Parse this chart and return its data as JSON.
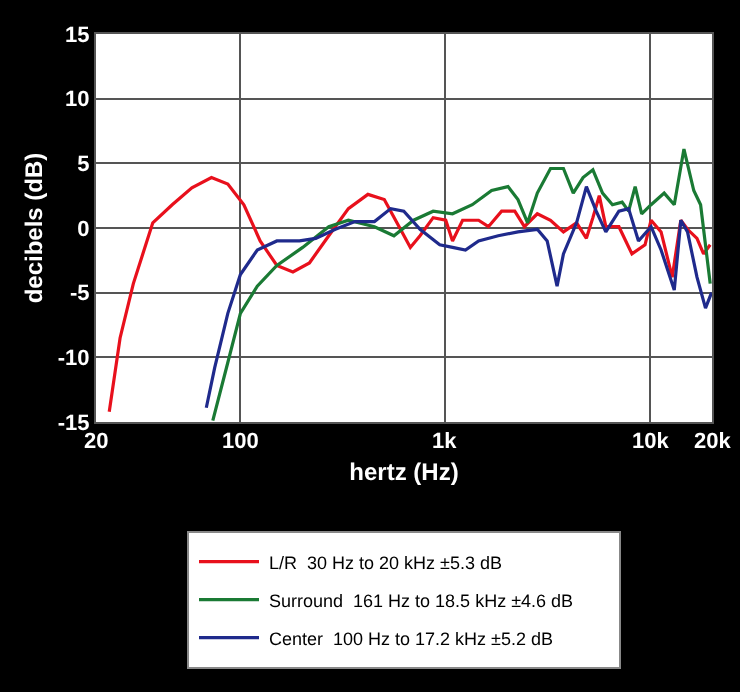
{
  "chart_data": {
    "type": "line",
    "xlabel": "hertz (Hz)",
    "ylabel": "decibels (dB)",
    "log": "x",
    "grid": true,
    "legend": "bottom",
    "marker": "none",
    "line_style": "solid",
    "xlim": [
      20,
      20000
    ],
    "xticks": [
      20,
      100,
      {
        "value": 1000,
        "label": "1k"
      },
      {
        "value": 10000,
        "label": "10k"
      },
      {
        "value": 20000,
        "label": "20k"
      }
    ],
    "ylim": [
      -15,
      15
    ],
    "yticks": [
      -15,
      -10,
      -5,
      0,
      5,
      10,
      15
    ],
    "series": [
      {
        "name": "L/R  30 Hz to 20 kHz ±5.3 dB",
        "color": "#e8101c",
        "x": [
          23.2,
          26.2,
          30.4,
          37.8,
          47,
          58.6,
          73,
          87.7,
          105,
          126,
          152,
          182,
          219,
          272,
          339,
          422,
          507,
          608,
          679,
          757,
          877,
          1010,
          1090,
          1220,
          1460,
          1630,
          1890,
          2190,
          2440,
          2820,
          3270,
          3780,
          4380,
          4890,
          5260,
          5650,
          6080,
          7040,
          8150,
          9440,
          10100,
          11300,
          12800,
          14100,
          15200,
          16900,
          18200,
          19600
        ],
        "values": [
          -14.2,
          -8.5,
          -4.3,
          0.4,
          1.8,
          3.1,
          3.9,
          3.4,
          1.8,
          -1.0,
          -2.9,
          -3.4,
          -2.7,
          -0.6,
          1.5,
          2.6,
          2.2,
          -0.1,
          -1.5,
          -0.6,
          0.8,
          0.6,
          -1.0,
          0.6,
          0.6,
          0.1,
          1.3,
          1.3,
          0.1,
          1.1,
          0.6,
          -0.3,
          0.4,
          -0.8,
          0.8,
          2.5,
          0.1,
          0.1,
          -2.0,
          -1.3,
          0.6,
          -0.3,
          -3.8,
          0.6,
          -0.1,
          -0.8,
          -2.0,
          -1.3
        ]
      },
      {
        "name": "Surround  161 Hz to 18.5 kHz ±4.6 dB",
        "color": "#1a7a34",
        "x": [
          74.1,
          87.7,
          101,
          122,
          152,
          203,
          272,
          339,
          454,
          565,
          704,
          877,
          1090,
          1360,
          1690,
          2030,
          2270,
          2530,
          2820,
          3270,
          3780,
          4220,
          4710,
          5260,
          5860,
          6550,
          7300,
          7850,
          8450,
          9090,
          10100,
          11700,
          13100,
          14600,
          16300,
          17600,
          19600
        ],
        "values": [
          -14.9,
          -10.4,
          -6.6,
          -4.5,
          -2.9,
          -1.5,
          0.1,
          0.6,
          0.1,
          -0.6,
          0.6,
          1.3,
          1.1,
          1.8,
          2.9,
          3.2,
          2.2,
          0.4,
          2.7,
          4.6,
          4.6,
          2.7,
          3.9,
          4.5,
          2.7,
          1.8,
          2.0,
          1.3,
          3.2,
          1.1,
          1.8,
          2.7,
          1.8,
          6.1,
          2.9,
          1.8,
          -4.3
        ]
      },
      {
        "name": "Center  100 Hz to 17.2 kHz ±5.2 dB",
        "color": "#1f2a8c",
        "x": [
          68.9,
          75.7,
          87.7,
          101,
          122,
          152,
          196,
          235,
          293,
          365,
          454,
          545,
          631,
          757,
          944,
          1090,
          1260,
          1460,
          1820,
          2270,
          2820,
          3150,
          3520,
          3780,
          4380,
          4890,
          5460,
          6080,
          7040,
          7850,
          8770,
          10100,
          11300,
          13100,
          14100,
          15200,
          16900,
          18600,
          19900
        ],
        "values": [
          -13.9,
          -10.8,
          -6.6,
          -3.6,
          -1.7,
          -1.0,
          -1.0,
          -0.8,
          -0.1,
          0.5,
          0.5,
          1.5,
          1.3,
          -0.1,
          -1.3,
          -1.5,
          -1.7,
          -1.0,
          -0.6,
          -0.3,
          -0.1,
          -1.0,
          -4.5,
          -2.0,
          0.4,
          3.2,
          1.3,
          -0.3,
          1.3,
          1.5,
          -1.0,
          0.1,
          -1.7,
          -4.8,
          0.6,
          -0.3,
          -3.8,
          -6.2,
          -5.0
        ]
      }
    ]
  }
}
